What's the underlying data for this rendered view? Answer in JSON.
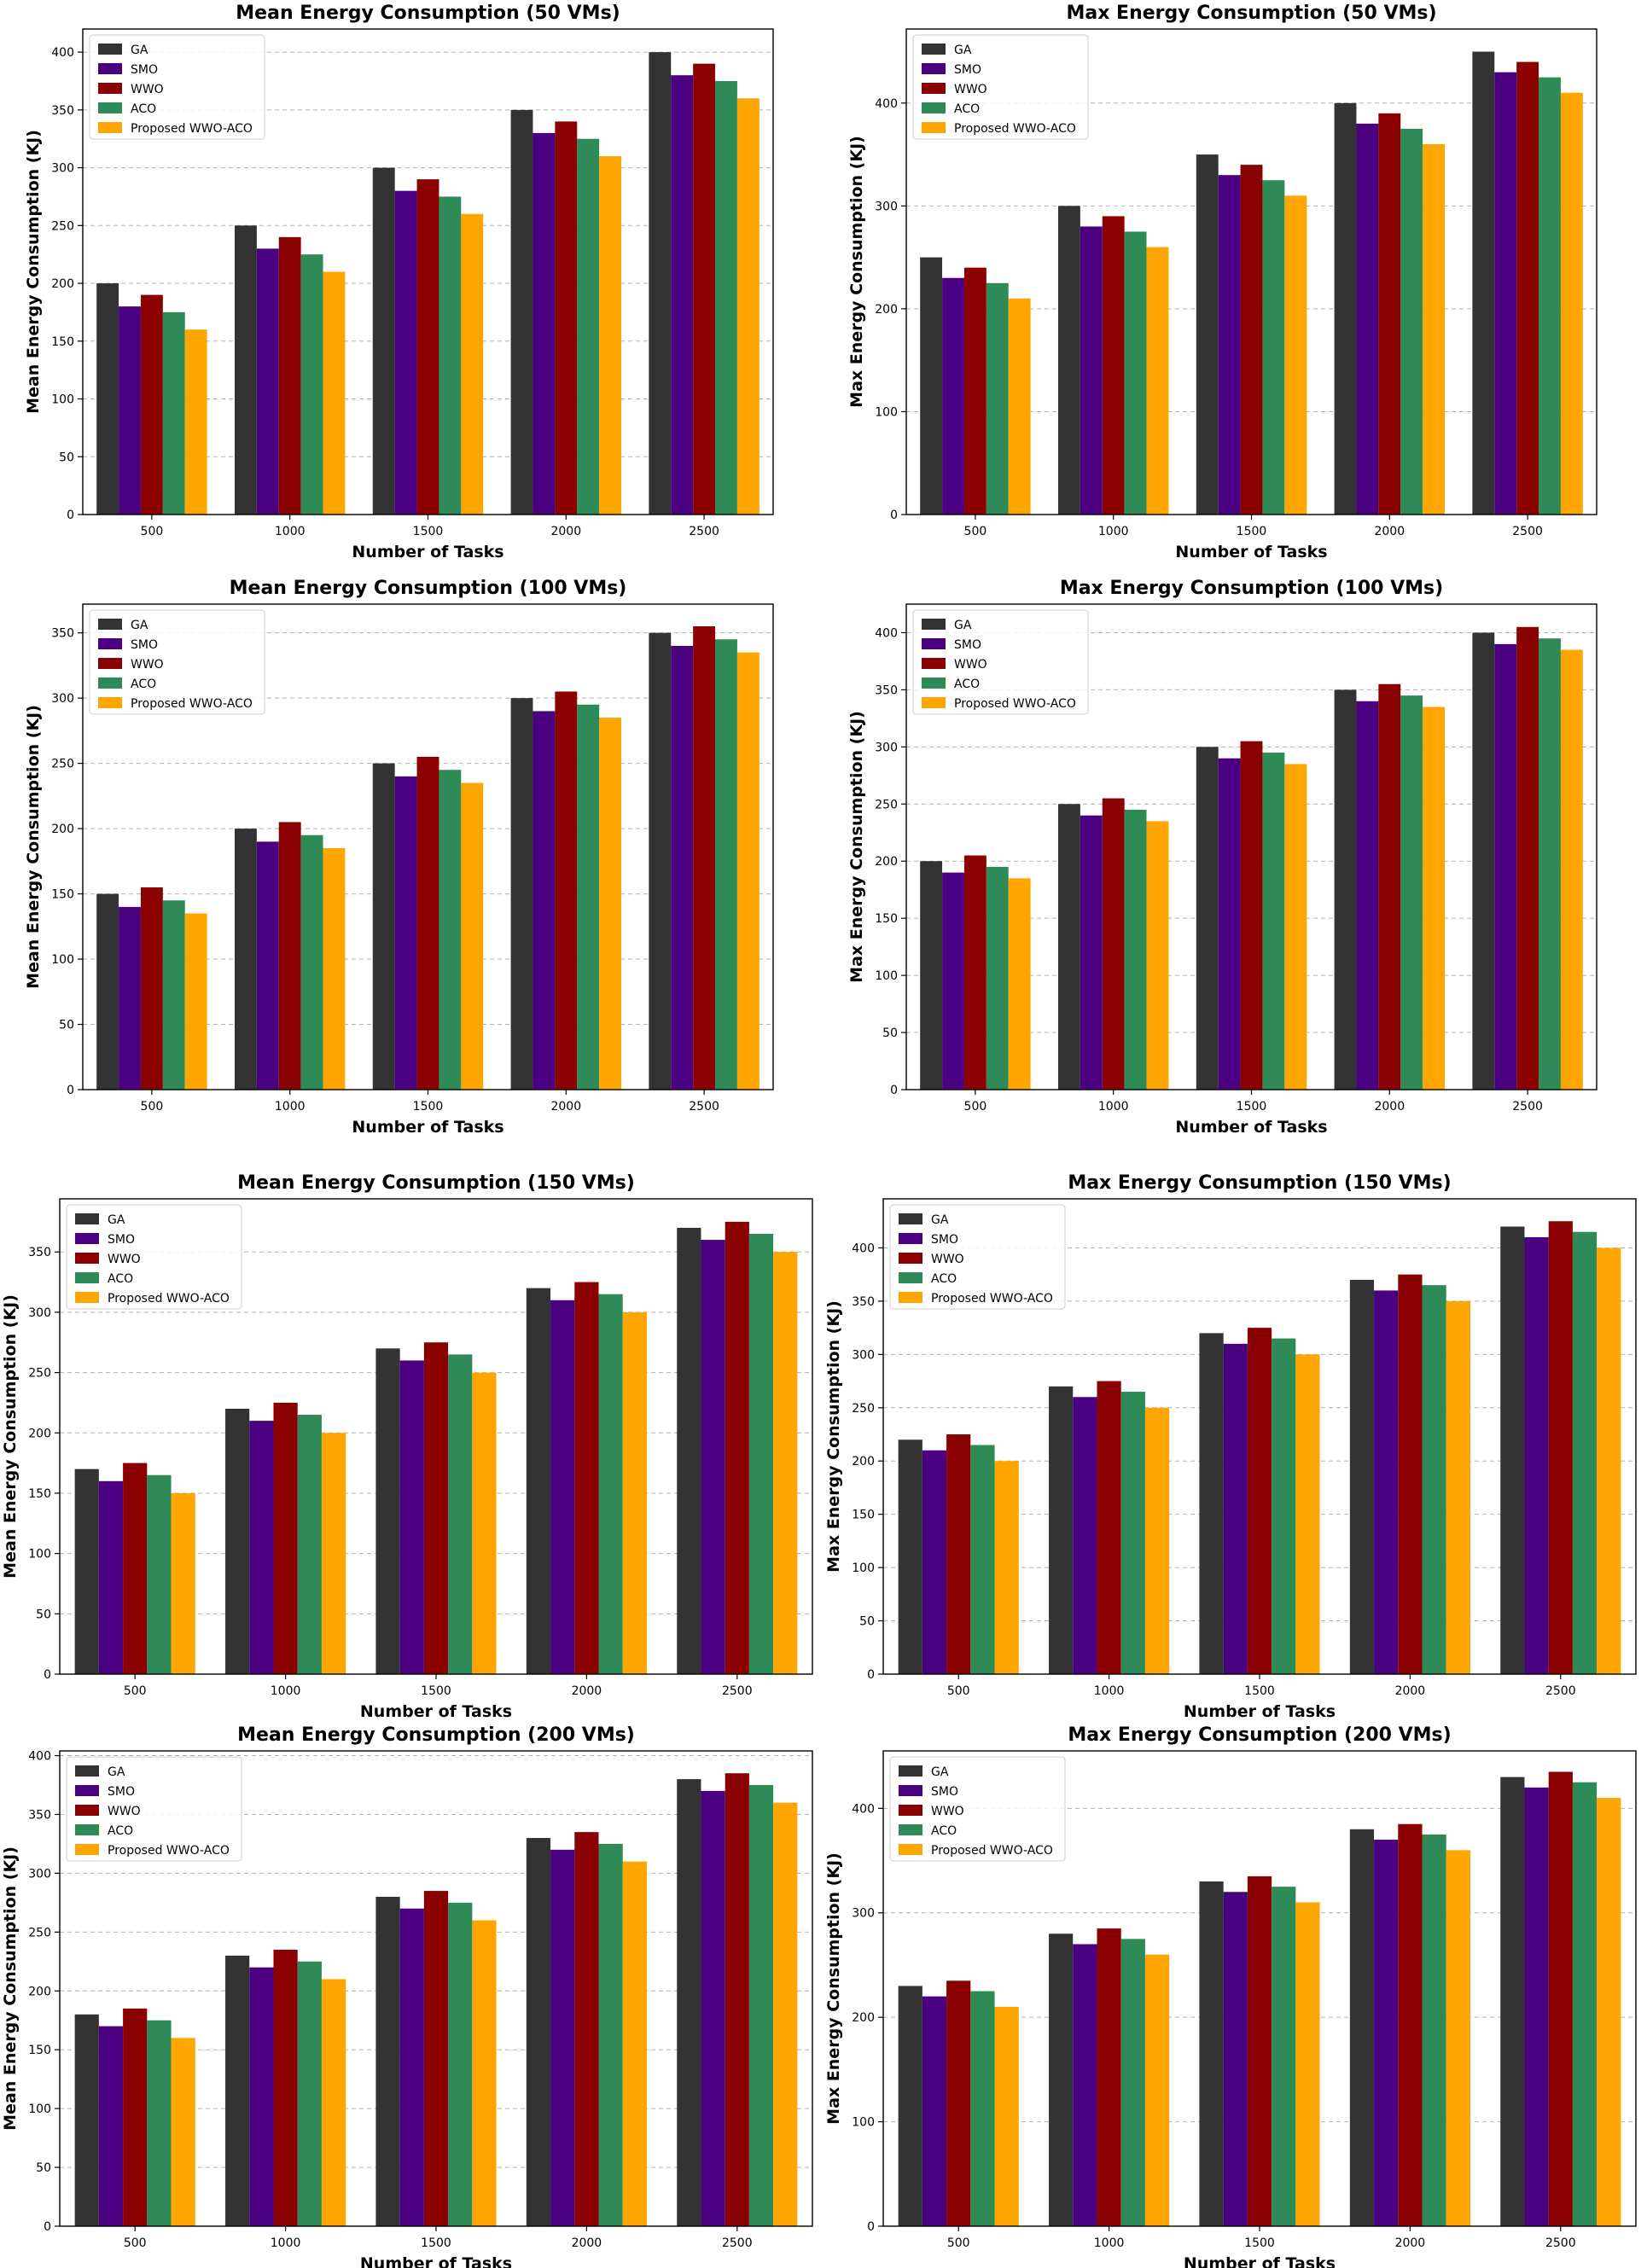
{
  "colors": {
    "GA": "#333333",
    "SMO": "#4b0082",
    "WWO": "#8b0000",
    "ACO": "#2e8b57",
    "Proposed WWO-ACO": "#ffa500"
  },
  "chart_data": [
    {
      "type": "bar",
      "title": "Mean Energy Consumption (50 VMs)",
      "xlabel": "Number of Tasks",
      "ylabel": "Mean Energy Consumption (KJ)",
      "categories": [
        "500",
        "1000",
        "1500",
        "2000",
        "2500"
      ],
      "ylim": [
        0,
        420
      ],
      "yticks": [
        0,
        50,
        100,
        150,
        200,
        250,
        300,
        350,
        400
      ],
      "grid": true,
      "legend": "top-left",
      "series": [
        {
          "name": "GA",
          "values": [
            200,
            250,
            300,
            350,
            400
          ]
        },
        {
          "name": "SMO",
          "values": [
            180,
            230,
            280,
            330,
            380
          ]
        },
        {
          "name": "WWO",
          "values": [
            190,
            240,
            290,
            340,
            390
          ]
        },
        {
          "name": "ACO",
          "values": [
            175,
            225,
            275,
            325,
            375
          ]
        },
        {
          "name": "Proposed WWO-ACO",
          "values": [
            160,
            210,
            260,
            310,
            360
          ]
        }
      ]
    },
    {
      "type": "bar",
      "title": "Max Energy Consumption (50 VMs)",
      "xlabel": "Number of Tasks",
      "ylabel": "Max Energy Consumption (KJ)",
      "categories": [
        "500",
        "1000",
        "1500",
        "2000",
        "2500"
      ],
      "ylim": [
        0,
        472
      ],
      "yticks": [
        0,
        100,
        200,
        300,
        400
      ],
      "grid": true,
      "legend": "top-left",
      "series": [
        {
          "name": "GA",
          "values": [
            250,
            300,
            350,
            400,
            450
          ]
        },
        {
          "name": "SMO",
          "values": [
            230,
            280,
            330,
            380,
            430
          ]
        },
        {
          "name": "WWO",
          "values": [
            240,
            290,
            340,
            390,
            440
          ]
        },
        {
          "name": "ACO",
          "values": [
            225,
            275,
            325,
            375,
            425
          ]
        },
        {
          "name": "Proposed WWO-ACO",
          "values": [
            210,
            260,
            310,
            360,
            410
          ]
        }
      ]
    },
    {
      "type": "bar",
      "title": "Mean Energy Consumption (100 VMs)",
      "xlabel": "Number of Tasks",
      "ylabel": "Mean Energy Consumption (KJ)",
      "categories": [
        "500",
        "1000",
        "1500",
        "2000",
        "2500"
      ],
      "ylim": [
        0,
        372
      ],
      "yticks": [
        0,
        50,
        100,
        150,
        200,
        250,
        300,
        350
      ],
      "grid": true,
      "legend": "top-left",
      "series": [
        {
          "name": "GA",
          "values": [
            150,
            200,
            250,
            300,
            350
          ]
        },
        {
          "name": "SMO",
          "values": [
            140,
            190,
            240,
            290,
            340
          ]
        },
        {
          "name": "WWO",
          "values": [
            155,
            205,
            255,
            305,
            355
          ]
        },
        {
          "name": "ACO",
          "values": [
            145,
            195,
            245,
            295,
            345
          ]
        },
        {
          "name": "Proposed WWO-ACO",
          "values": [
            135,
            185,
            235,
            285,
            335
          ]
        }
      ]
    },
    {
      "type": "bar",
      "title": "Max Energy Consumption (100 VMs)",
      "xlabel": "Number of Tasks",
      "ylabel": "Max Energy Consumption (KJ)",
      "categories": [
        "500",
        "1000",
        "1500",
        "2000",
        "2500"
      ],
      "ylim": [
        0,
        425
      ],
      "yticks": [
        0,
        50,
        100,
        150,
        200,
        250,
        300,
        350,
        400
      ],
      "grid": true,
      "legend": "top-left",
      "series": [
        {
          "name": "GA",
          "values": [
            200,
            250,
            300,
            350,
            400
          ]
        },
        {
          "name": "SMO",
          "values": [
            190,
            240,
            290,
            340,
            390
          ]
        },
        {
          "name": "WWO",
          "values": [
            205,
            255,
            305,
            355,
            405
          ]
        },
        {
          "name": "ACO",
          "values": [
            195,
            245,
            295,
            345,
            395
          ]
        },
        {
          "name": "Proposed WWO-ACO",
          "values": [
            185,
            235,
            285,
            335,
            385
          ]
        }
      ]
    },
    {
      "type": "bar",
      "title": "Mean Energy Consumption (150 VMs)",
      "xlabel": "Number of Tasks",
      "ylabel": "Mean Energy Consumption (KJ)",
      "categories": [
        "500",
        "1000",
        "1500",
        "2000",
        "2500"
      ],
      "ylim": [
        0,
        394
      ],
      "yticks": [
        0,
        50,
        100,
        150,
        200,
        250,
        300,
        350
      ],
      "grid": true,
      "legend": "top-left",
      "series": [
        {
          "name": "GA",
          "values": [
            170,
            220,
            270,
            320,
            370
          ]
        },
        {
          "name": "SMO",
          "values": [
            160,
            210,
            260,
            310,
            360
          ]
        },
        {
          "name": "WWO",
          "values": [
            175,
            225,
            275,
            325,
            375
          ]
        },
        {
          "name": "ACO",
          "values": [
            165,
            215,
            265,
            315,
            365
          ]
        },
        {
          "name": "Proposed WWO-ACO",
          "values": [
            150,
            200,
            250,
            300,
            350
          ]
        }
      ]
    },
    {
      "type": "bar",
      "title": "Max Energy Consumption (150 VMs)",
      "xlabel": "Number of Tasks",
      "ylabel": "Max Energy Consumption (KJ)",
      "categories": [
        "500",
        "1000",
        "1500",
        "2000",
        "2500"
      ],
      "ylim": [
        0,
        446
      ],
      "yticks": [
        0,
        50,
        100,
        150,
        200,
        250,
        300,
        350,
        400
      ],
      "grid": true,
      "legend": "top-left",
      "series": [
        {
          "name": "GA",
          "values": [
            220,
            270,
            320,
            370,
            420
          ]
        },
        {
          "name": "SMO",
          "values": [
            210,
            260,
            310,
            360,
            410
          ]
        },
        {
          "name": "WWO",
          "values": [
            225,
            275,
            325,
            375,
            425
          ]
        },
        {
          "name": "ACO",
          "values": [
            215,
            265,
            315,
            365,
            415
          ]
        },
        {
          "name": "Proposed WWO-ACO",
          "values": [
            200,
            250,
            300,
            350,
            400
          ]
        }
      ]
    },
    {
      "type": "bar",
      "title": "Mean Energy Consumption (200 VMs)",
      "xlabel": "Number of Tasks",
      "ylabel": "Mean Energy Consumption (KJ)",
      "categories": [
        "500",
        "1000",
        "1500",
        "2000",
        "2500"
      ],
      "ylim": [
        0,
        404
      ],
      "yticks": [
        0,
        50,
        100,
        150,
        200,
        250,
        300,
        350,
        400
      ],
      "grid": true,
      "legend": "top-left",
      "series": [
        {
          "name": "GA",
          "values": [
            180,
            230,
            280,
            330,
            380
          ]
        },
        {
          "name": "SMO",
          "values": [
            170,
            220,
            270,
            320,
            370
          ]
        },
        {
          "name": "WWO",
          "values": [
            185,
            235,
            285,
            335,
            385
          ]
        },
        {
          "name": "ACO",
          "values": [
            175,
            225,
            275,
            325,
            375
          ]
        },
        {
          "name": "Proposed WWO-ACO",
          "values": [
            160,
            210,
            260,
            310,
            360
          ]
        }
      ]
    },
    {
      "type": "bar",
      "title": "Max Energy Consumption (200 VMs)",
      "xlabel": "Number of Tasks",
      "ylabel": "Max Energy Consumption (KJ)",
      "categories": [
        "500",
        "1000",
        "1500",
        "2000",
        "2500"
      ],
      "ylim": [
        0,
        455
      ],
      "yticks": [
        0,
        100,
        200,
        300,
        400
      ],
      "grid": true,
      "legend": "top-left",
      "series": [
        {
          "name": "GA",
          "values": [
            230,
            280,
            330,
            380,
            430
          ]
        },
        {
          "name": "SMO",
          "values": [
            220,
            270,
            320,
            370,
            420
          ]
        },
        {
          "name": "WWO",
          "values": [
            235,
            285,
            335,
            385,
            435
          ]
        },
        {
          "name": "ACO",
          "values": [
            225,
            275,
            325,
            375,
            425
          ]
        },
        {
          "name": "Proposed WWO-ACO",
          "values": [
            210,
            260,
            310,
            360,
            410
          ]
        }
      ]
    }
  ]
}
